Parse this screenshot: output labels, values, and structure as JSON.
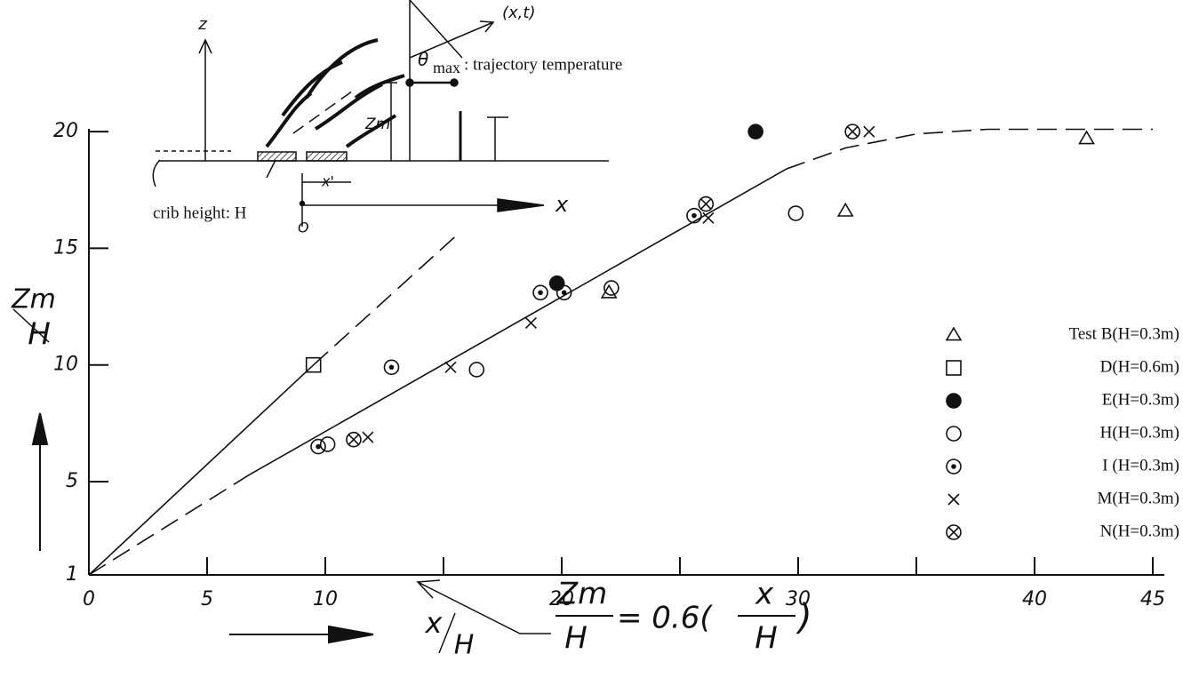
{
  "chart_data": {
    "type": "scatter",
    "y_label": {
      "num": "Zm",
      "den": "H"
    },
    "x_label": {
      "num": "x",
      "den": "H"
    },
    "xlim": [
      0,
      45
    ],
    "ylim": [
      1,
      20.5
    ],
    "xticks": [
      0,
      5,
      10,
      20,
      30,
      40,
      45
    ],
    "xticks_minor": [
      15,
      25,
      35
    ],
    "yticks": [
      1,
      5,
      10,
      15,
      20
    ],
    "series": [
      {
        "name": "Test B(H=0.3m)",
        "marker": "triangle",
        "color": "#111",
        "x": [
          42.2,
          32.0,
          22.0
        ],
        "values": [
          19.7,
          16.6,
          13.1
        ]
      },
      {
        "name": "D(H=0.6m)",
        "marker": "square",
        "color": "#111",
        "x": [
          9.5
        ],
        "values": [
          10.0
        ]
      },
      {
        "name": "E(H=0.3m)",
        "marker": "filled-circle",
        "color": "#111",
        "x": [
          28.2,
          19.8
        ],
        "values": [
          20.0,
          13.5
        ]
      },
      {
        "name": "H(H=0.3m)",
        "marker": "circle",
        "color": "#111",
        "x": [
          10.1,
          16.4,
          22.1,
          29.9
        ],
        "values": [
          6.6,
          9.8,
          13.3,
          16.5
        ]
      },
      {
        "name": "I  (H=0.3m)",
        "marker": "dot-circle",
        "color": "#111",
        "x": [
          9.7,
          12.8,
          19.1,
          20.1,
          25.6
        ],
        "values": [
          6.5,
          9.9,
          13.1,
          13.1,
          16.4
        ]
      },
      {
        "name": "M(H=0.3m)",
        "marker": "cross",
        "color": "#111",
        "x": [
          11.8,
          15.3,
          18.7,
          26.2,
          33.0
        ],
        "values": [
          6.9,
          9.9,
          11.8,
          16.3,
          20.0
        ]
      },
      {
        "name": "N(H=0.3m)",
        "marker": "cross-circle",
        "color": "#111",
        "x": [
          11.2,
          26.1,
          32.3
        ],
        "values": [
          6.8,
          16.9,
          20.0
        ]
      }
    ],
    "lines": [
      {
        "dash": false,
        "x": [
          0,
          9.5
        ],
        "y": [
          1,
          10
        ]
      },
      {
        "dash": true,
        "x": [
          9.5,
          15.6
        ],
        "y": [
          10,
          15.6
        ]
      },
      {
        "dash": true,
        "x": [
          0,
          6.8
        ],
        "y": [
          1,
          5.3
        ]
      },
      {
        "dash": false,
        "x": [
          6.8,
          29.5
        ],
        "y": [
          5.3,
          18.4
        ]
      },
      {
        "dash": true,
        "x": [
          29.5,
          32,
          35,
          38,
          45
        ],
        "y": [
          18.4,
          19.3,
          19.9,
          20.1,
          20.1
        ]
      }
    ],
    "equation": {
      "lhs_num": "Zm",
      "lhs_den": "H",
      "middle": "= 0.6(",
      "rhs_num": "x",
      "rhs_den": "H",
      "close": ")"
    },
    "inset": {
      "z": "z",
      "point": "(x,t)",
      "theta": "θ",
      "theta_sub": "max",
      "caption": ": trajectory temperature",
      "zm": "Zm",
      "xprime": "x'",
      "crib": "crib height: H",
      "origin": "O",
      "x": "x"
    }
  }
}
